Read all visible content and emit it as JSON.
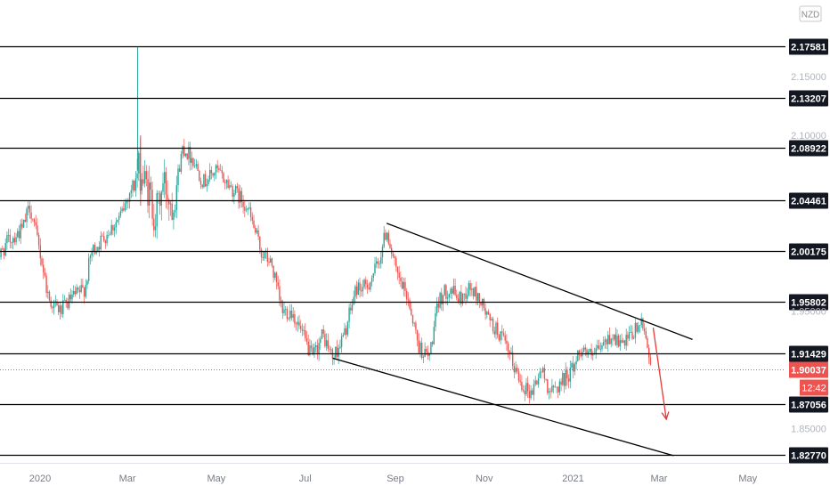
{
  "currency_badge": "NZD",
  "chart_data": {
    "type": "candlestick",
    "ylim": [
      1.815,
      2.205
    ],
    "colors": {
      "up": "#26a69a",
      "down": "#ef5350",
      "level": "#000000",
      "trend": "#000000",
      "arrow": "#e53935"
    },
    "partial_top_label": "2",
    "y_ticks": [
      "2.15000",
      "2.10000",
      "1.95000",
      "1.85000"
    ],
    "x_ticks": [
      {
        "label": "2020",
        "date": "2020-01-01"
      },
      {
        "label": "Mar",
        "date": "2020-03-01"
      },
      {
        "label": "May",
        "date": "2020-05-01"
      },
      {
        "label": "Jul",
        "date": "2020-07-01"
      },
      {
        "label": "Sep",
        "date": "2020-09-01"
      },
      {
        "label": "Nov",
        "date": "2020-11-01"
      },
      {
        "label": "2021",
        "date": "2021-01-01"
      },
      {
        "label": "Mar",
        "date": "2021-03-01"
      },
      {
        "label": "May",
        "date": "2021-05-01"
      }
    ],
    "levels": [
      "2.17581",
      "2.13207",
      "2.08922",
      "2.04461",
      "2.00175",
      "1.95802",
      "1.91429",
      "1.87056",
      "1.82770"
    ],
    "current_price": "1.90037",
    "countdown": "12:42",
    "price_path": [
      [
        "2019-12-01",
        1.99
      ],
      [
        "2019-12-10",
        2.01
      ],
      [
        "2019-12-20",
        2.02
      ],
      [
        "2019-12-25",
        2.04
      ],
      [
        "2020-01-01",
        2.0
      ],
      [
        "2020-01-07",
        1.96
      ],
      [
        "2020-01-15",
        1.95
      ],
      [
        "2020-01-22",
        1.96
      ],
      [
        "2020-02-01",
        1.97
      ],
      [
        "2020-02-05",
        2.0
      ],
      [
        "2020-02-12",
        2.01
      ],
      [
        "2020-02-18",
        2.02
      ],
      [
        "2020-02-25",
        2.03
      ],
      [
        "2020-03-02",
        2.05
      ],
      [
        "2020-03-09",
        2.07
      ],
      [
        "2020-03-16",
        2.05
      ],
      [
        "2020-03-20",
        2.03
      ],
      [
        "2020-03-26",
        2.06
      ],
      [
        "2020-04-01",
        2.04
      ],
      [
        "2020-04-08",
        2.09
      ],
      [
        "2020-04-15",
        2.08
      ],
      [
        "2020-04-22",
        2.06
      ],
      [
        "2020-05-01",
        2.07
      ],
      [
        "2020-05-08",
        2.06
      ],
      [
        "2020-05-15",
        2.05
      ],
      [
        "2020-05-22",
        2.04
      ],
      [
        "2020-06-01",
        2.0
      ],
      [
        "2020-06-08",
        1.99
      ],
      [
        "2020-06-15",
        1.95
      ],
      [
        "2020-06-22",
        1.95
      ],
      [
        "2020-06-29",
        1.93
      ],
      [
        "2020-07-06",
        1.91
      ],
      [
        "2020-07-13",
        1.93
      ],
      [
        "2020-07-20",
        1.91
      ],
      [
        "2020-07-28",
        1.93
      ],
      [
        "2020-08-05",
        1.97
      ],
      [
        "2020-08-12",
        1.97
      ],
      [
        "2020-08-20",
        1.99
      ],
      [
        "2020-08-26",
        2.02
      ],
      [
        "2020-09-02",
        1.98
      ],
      [
        "2020-09-10",
        1.96
      ],
      [
        "2020-09-17",
        1.92
      ],
      [
        "2020-09-24",
        1.91
      ],
      [
        "2020-10-01",
        1.96
      ],
      [
        "2020-10-08",
        1.97
      ],
      [
        "2020-10-15",
        1.96
      ],
      [
        "2020-10-22",
        1.97
      ],
      [
        "2020-10-29",
        1.96
      ],
      [
        "2020-11-05",
        1.94
      ],
      [
        "2020-11-12",
        1.93
      ],
      [
        "2020-11-19",
        1.91
      ],
      [
        "2020-11-26",
        1.89
      ],
      [
        "2020-12-03",
        1.88
      ],
      [
        "2020-12-10",
        1.9
      ],
      [
        "2020-12-17",
        1.88
      ],
      [
        "2020-12-24",
        1.89
      ],
      [
        "2020-12-31",
        1.9
      ],
      [
        "2021-01-07",
        1.92
      ],
      [
        "2021-01-14",
        1.91
      ],
      [
        "2021-01-21",
        1.92
      ],
      [
        "2021-01-28",
        1.93
      ],
      [
        "2021-02-04",
        1.92
      ],
      [
        "2021-02-11",
        1.93
      ],
      [
        "2021-02-16",
        1.94
      ],
      [
        "2021-02-20",
        1.93
      ],
      [
        "2021-02-24",
        1.9
      ]
    ],
    "trend_lines": [
      [
        [
          "2020-08-26",
          2.025
        ],
        [
          "2021-03-24",
          1.926
        ]
      ],
      [
        [
          "2020-07-20",
          1.91
        ],
        [
          "2021-03-11",
          1.827
        ]
      ]
    ],
    "arrow": [
      [
        "2021-02-25",
        1.936
      ],
      [
        "2021-03-06",
        1.858
      ]
    ]
  }
}
